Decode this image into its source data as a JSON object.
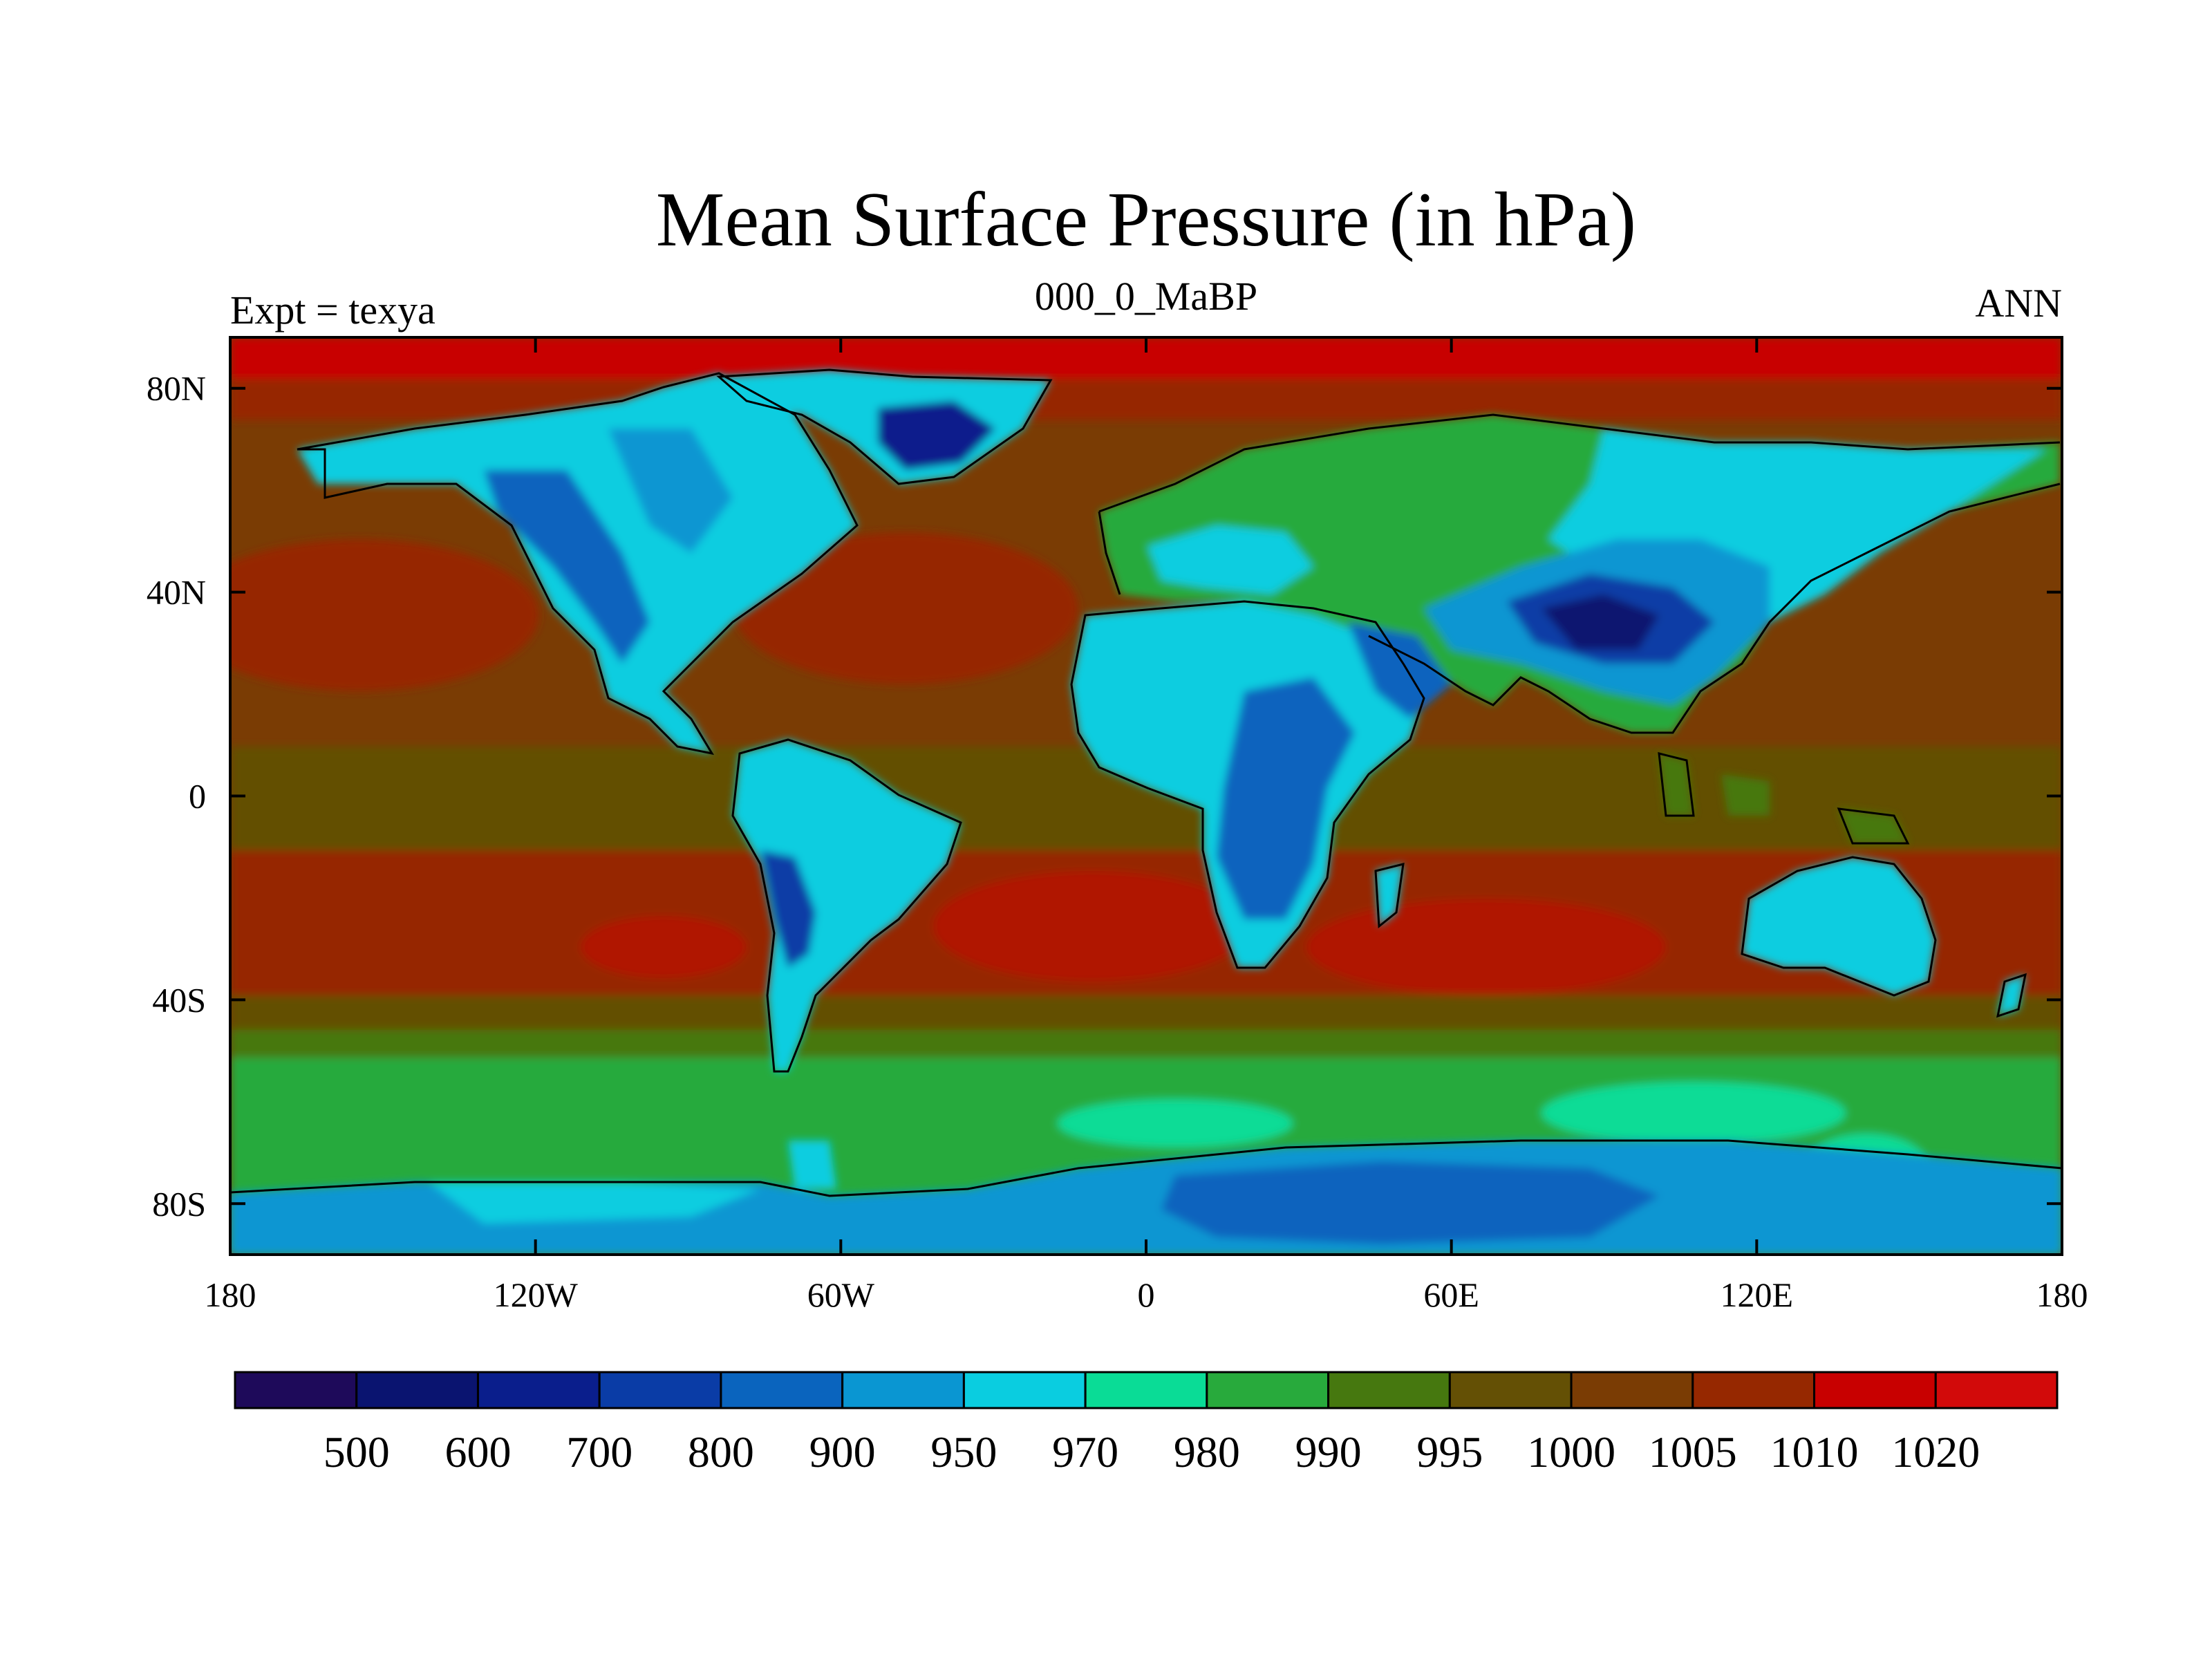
{
  "title": "Mean Surface Pressure (in hPa)",
  "left_string": "Expt = texya",
  "center_string": "000_0_MaBP",
  "right_string": "ANN",
  "map": {
    "projection": "cylindrical-equidistant",
    "lon_range": [
      -180,
      180
    ],
    "lat_range": [
      -90,
      90
    ],
    "lon_ticks": [
      {
        "value": -180,
        "label": "180"
      },
      {
        "value": -120,
        "label": "120W"
      },
      {
        "value": -60,
        "label": "60W"
      },
      {
        "value": 0,
        "label": "0"
      },
      {
        "value": 60,
        "label": "60E"
      },
      {
        "value": 120,
        "label": "120E"
      },
      {
        "value": 180,
        "label": "180"
      }
    ],
    "lat_ticks": [
      {
        "value": 80,
        "label": "80N"
      },
      {
        "value": 40,
        "label": "40N"
      },
      {
        "value": 0,
        "label": "0"
      },
      {
        "value": -40,
        "label": "40S"
      },
      {
        "value": -80,
        "label": "80S"
      }
    ],
    "coastline_color": "#000000"
  },
  "colorbar": {
    "labels": [
      "500",
      "600",
      "700",
      "800",
      "900",
      "950",
      "970",
      "980",
      "990",
      "995",
      "1000",
      "1005",
      "1010",
      "1020"
    ],
    "colors": [
      "#1e0a5a",
      "#0a1470",
      "#0a1e8c",
      "#0a3ca6",
      "#0a64be",
      "#0a96d2",
      "#0acde0",
      "#0adc96",
      "#28aa3c",
      "#46780f",
      "#645005",
      "#7a3c04",
      "#962800",
      "#c80000",
      "#d20a0a"
    ]
  },
  "regions": {
    "background_color": "#7a3c04",
    "subtropical_high_color": "#962800",
    "polar_high_color": "#c80000",
    "southern_ocean_colors": [
      "#645005",
      "#28aa3c",
      "#0adc96"
    ],
    "land_colors": [
      "#28aa3c",
      "#0acde0",
      "#0a96d2",
      "#0a64be",
      "#0a3ca6",
      "#0a1e8c"
    ]
  }
}
